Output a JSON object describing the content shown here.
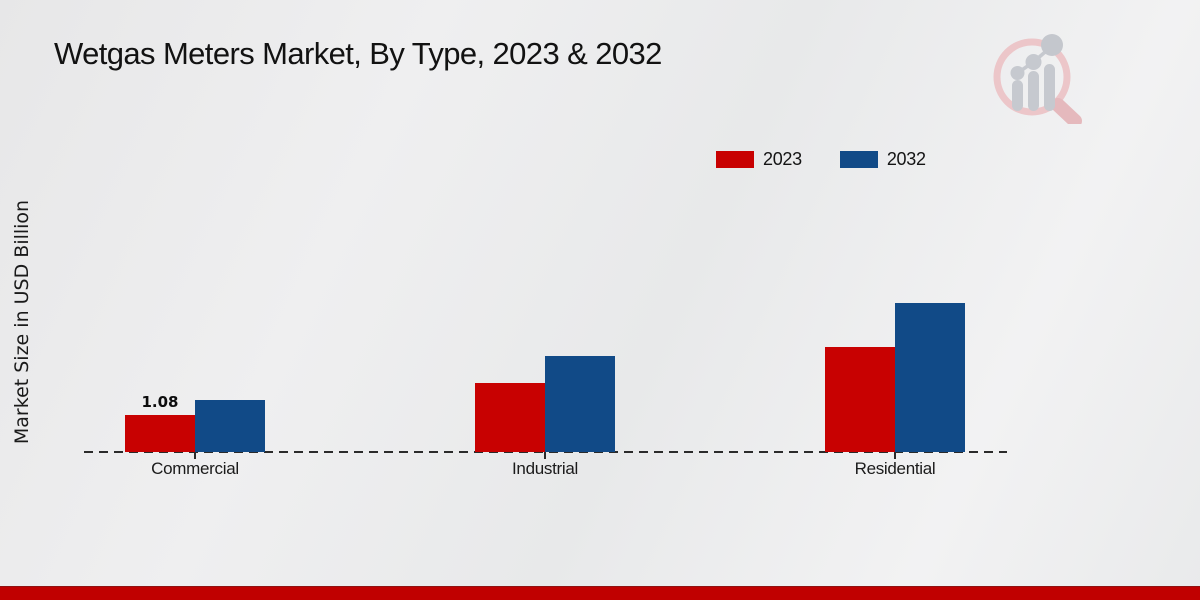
{
  "page": {
    "title": "Wetgas Meters Market, By Type, 2023 & 2032"
  },
  "chart_data": {
    "type": "bar",
    "title": "Wetgas Meters Market, By Type, 2023 & 2032",
    "xlabel": "",
    "ylabel": "Market Size in USD Billion",
    "categories": [
      "Commercial",
      "Industrial",
      "Residential"
    ],
    "series": [
      {
        "name": "2023",
        "color": "#c80101",
        "values": [
          1.08,
          2.0,
          3.05
        ]
      },
      {
        "name": "2032",
        "color": "#114a87",
        "values": [
          1.52,
          2.8,
          4.35
        ]
      }
    ],
    "ylim": [
      0,
      4.8
    ],
    "grid": false,
    "legend_position": "top-right",
    "bar_labels": [
      {
        "series": "2023",
        "category": "Commercial",
        "text": "1.08"
      }
    ],
    "baseline_style": "dashed"
  },
  "colors": {
    "bar_2023": "#c80101",
    "bar_2032": "#114a87",
    "footer_stripe": "#c00000",
    "axis": "#2b2b2b",
    "background": "#ebebec"
  },
  "icons": {
    "watermark": "magnifier-bar-chart-logo"
  }
}
